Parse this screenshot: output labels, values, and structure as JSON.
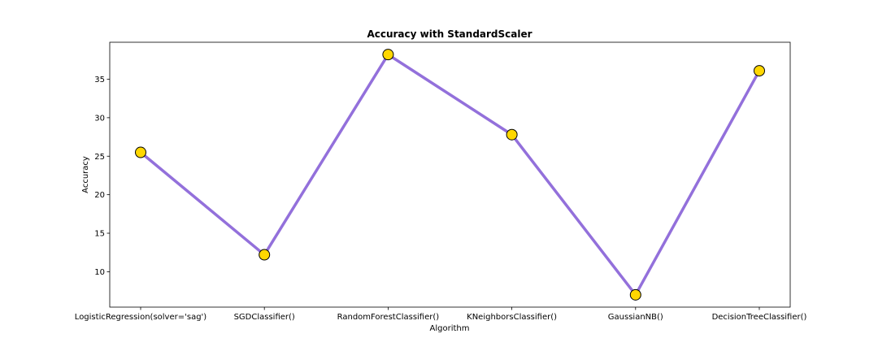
{
  "chart_data": {
    "type": "line",
    "title": "Accuracy with StandardScaler",
    "xlabel": "Algorithm",
    "ylabel": "Accuracy",
    "categories": [
      "LogisticRegression(solver='sag')",
      "SGDClassifier()",
      "RandomForestClassifier()",
      "KNeighborsClassifier()",
      "GaussianNB()",
      "DecisionTreeClassifier()"
    ],
    "values": [
      25.5,
      12.2,
      38.2,
      27.8,
      7.0,
      36.1
    ],
    "ylim": [
      5.4,
      39.8
    ],
    "yticks": [
      10,
      15,
      20,
      25,
      30,
      35
    ],
    "grid": false,
    "legend": "none",
    "colors": {
      "line": "#9370db",
      "marker_fill": "#ffd700",
      "marker_edge": "#000000"
    }
  }
}
